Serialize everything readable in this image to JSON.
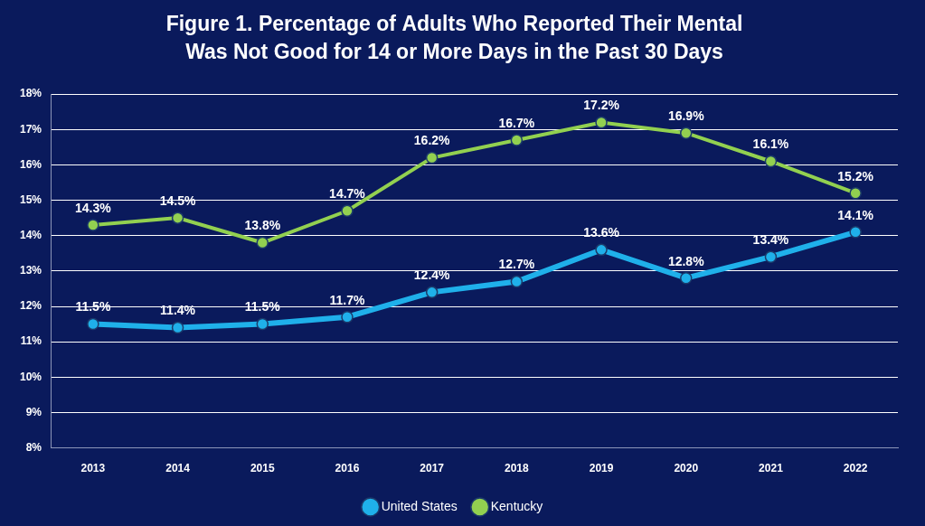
{
  "chart_data": {
    "type": "line",
    "title": "Figure 1. Percentage of Adults Who Reported Their Mental Was Not Good for 14 or More Days in the Past 30 Days",
    "categories": [
      "2013",
      "2014",
      "2015",
      "2016",
      "2017",
      "2018",
      "2019",
      "2020",
      "2021",
      "2022"
    ],
    "series": [
      {
        "name": "United States",
        "color": "#1fb0ea",
        "marker": "circle",
        "line_style": "solid",
        "values": [
          11.5,
          11.4,
          11.5,
          11.7,
          12.4,
          12.7,
          13.6,
          12.8,
          13.4,
          14.1
        ],
        "value_labels": [
          "11.5%",
          "11.4%",
          "11.5%",
          "11.7%",
          "12.4%",
          "12.7%",
          "13.6%",
          "12.8%",
          "13.4%",
          "14.1%"
        ]
      },
      {
        "name": "Kentucky",
        "color": "#92d050",
        "marker": "circle",
        "line_style": "solid",
        "values": [
          14.3,
          14.5,
          13.8,
          14.7,
          16.2,
          16.7,
          17.2,
          16.9,
          16.1,
          15.2
        ],
        "value_labels": [
          "14.3%",
          "14.5%",
          "13.8%",
          "14.7%",
          "16.2%",
          "16.7%",
          "17.2%",
          "16.9%",
          "16.1%",
          "15.2%"
        ]
      }
    ],
    "ylim": [
      8,
      18
    ],
    "yticks": [
      {
        "value": 8,
        "label": "8%"
      },
      {
        "value": 9,
        "label": "9%"
      },
      {
        "value": 10,
        "label": "10%"
      },
      {
        "value": 11,
        "label": "11%"
      },
      {
        "value": 12,
        "label": "12%"
      },
      {
        "value": 13,
        "label": "13%"
      },
      {
        "value": 14,
        "label": "14%"
      },
      {
        "value": 15,
        "label": "15%"
      },
      {
        "value": 16,
        "label": "16%"
      },
      {
        "value": 17,
        "label": "17%"
      },
      {
        "value": 18,
        "label": "18%"
      }
    ],
    "grid": true,
    "legend": "bottom",
    "data_labels": true
  }
}
